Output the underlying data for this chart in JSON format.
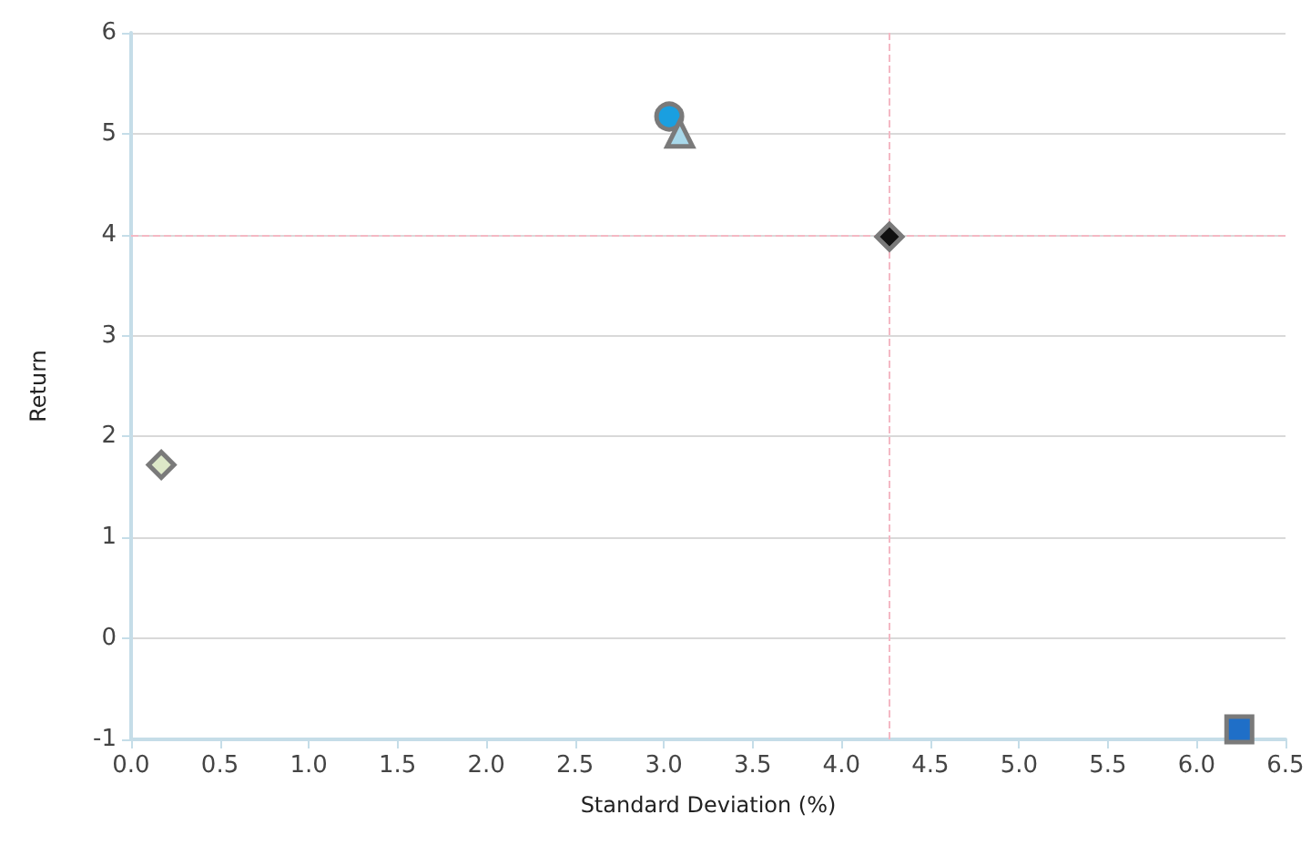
{
  "chart_data": {
    "type": "scatter",
    "xlabel": "Standard Deviation (%)",
    "ylabel": "Return",
    "xlim": [
      0,
      6.5
    ],
    "xticks": [
      {
        "value": 0,
        "label": "0.0"
      },
      {
        "value": 0.5,
        "label": "0.5"
      },
      {
        "value": 1,
        "label": "1.0"
      },
      {
        "value": 1.5,
        "label": "1.5"
      },
      {
        "value": 2,
        "label": "2.0"
      },
      {
        "value": 2.5,
        "label": "2.5"
      },
      {
        "value": 3,
        "label": "3.0"
      },
      {
        "value": 3.5,
        "label": "3.5"
      },
      {
        "value": 4,
        "label": "4.0"
      },
      {
        "value": 4.5,
        "label": "4.5"
      },
      {
        "value": 5,
        "label": "5.0"
      },
      {
        "value": 5.5,
        "label": "5.5"
      },
      {
        "value": 6,
        "label": "6.0"
      },
      {
        "value": 6.5,
        "label": "6.5"
      }
    ],
    "ylim": [
      -1,
      6
    ],
    "yticks": [
      -1,
      0,
      1,
      2,
      3,
      4,
      5,
      6
    ],
    "grid": "y",
    "series": [
      {
        "x": [
          3.03
        ],
        "values": [
          5.17
        ],
        "color": "#1a9fe0",
        "marker": "circle"
      },
      {
        "x": [
          3.09
        ],
        "values": [
          5.0
        ],
        "color": "#a8d8ea",
        "marker": "triangle"
      },
      {
        "x": [
          4.27
        ],
        "values": [
          3.98
        ],
        "color": "#111111",
        "marker": "diamond"
      },
      {
        "x": [
          0.17
        ],
        "values": [
          1.72
        ],
        "color": "#dde8c8",
        "marker": "diamond"
      },
      {
        "x": [
          6.24
        ],
        "values": [
          -0.9
        ],
        "color": "#1f6fc8",
        "marker": "square"
      }
    ],
    "ref_lines": [
      {
        "axis": "x",
        "value": 4.27,
        "color": "#f4b8c4",
        "line_style": "dashed"
      },
      {
        "axis": "y",
        "value": 4,
        "color": "#f4b8c4",
        "line_style": "dashed"
      }
    ]
  }
}
